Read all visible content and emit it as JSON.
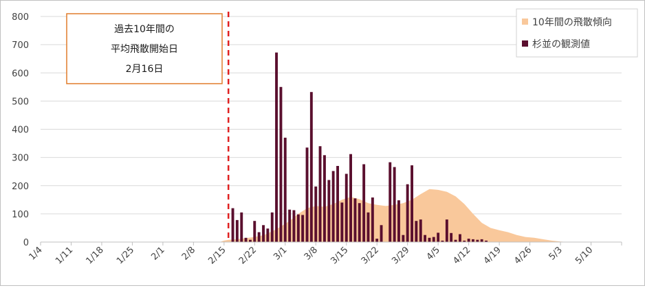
{
  "chart_data": {
    "type": "bar",
    "ylim": [
      0,
      800
    ],
    "yticks": [
      0,
      100,
      200,
      300,
      400,
      500,
      600,
      700,
      800
    ],
    "xlim": [
      "1/4",
      "5/17"
    ],
    "xticks": [
      "1/4",
      "1/11",
      "1/18",
      "1/25",
      "2/1",
      "2/8",
      "2/15",
      "2/22",
      "3/1",
      "3/8",
      "3/15",
      "3/22",
      "3/29",
      "4/5",
      "4/12",
      "4/19",
      "4/26",
      "5/3",
      "5/10"
    ],
    "grid": true,
    "legend_position": "top-right",
    "annotation": {
      "lines": [
        "過去10年間の",
        "平均飛散開始日",
        "2月16日"
      ],
      "marker_date": "2/16"
    },
    "series": [
      {
        "name": "10年間の飛散傾向",
        "kind": "area",
        "color": "#f9c89b",
        "points": [
          [
            "2/14",
            0
          ],
          [
            "2/15",
            5
          ],
          [
            "2/16",
            8
          ],
          [
            "2/18",
            10
          ],
          [
            "2/20",
            14
          ],
          [
            "2/22",
            18
          ],
          [
            "2/24",
            24
          ],
          [
            "2/26",
            38
          ],
          [
            "2/28",
            55
          ],
          [
            "3/2",
            75
          ],
          [
            "3/4",
            100
          ],
          [
            "3/6",
            120
          ],
          [
            "3/8",
            128
          ],
          [
            "3/10",
            125
          ],
          [
            "3/12",
            135
          ],
          [
            "3/14",
            150
          ],
          [
            "3/16",
            160
          ],
          [
            "3/18",
            152
          ],
          [
            "3/20",
            138
          ],
          [
            "3/22",
            132
          ],
          [
            "3/24",
            128
          ],
          [
            "3/26",
            132
          ],
          [
            "3/28",
            138
          ],
          [
            "3/30",
            150
          ],
          [
            "4/1",
            170
          ],
          [
            "4/3",
            188
          ],
          [
            "4/5",
            185
          ],
          [
            "4/7",
            178
          ],
          [
            "4/9",
            162
          ],
          [
            "4/11",
            135
          ],
          [
            "4/13",
            100
          ],
          [
            "4/15",
            68
          ],
          [
            "4/17",
            50
          ],
          [
            "4/19",
            42
          ],
          [
            "4/21",
            35
          ],
          [
            "4/23",
            25
          ],
          [
            "4/25",
            18
          ],
          [
            "4/27",
            15
          ],
          [
            "4/29",
            10
          ],
          [
            "5/1",
            5
          ],
          [
            "5/3",
            2
          ],
          [
            "5/5",
            0
          ]
        ]
      },
      {
        "name": "杉並の観測値",
        "kind": "bar",
        "color": "#5a0f2e",
        "points": [
          [
            "2/16",
            0
          ],
          [
            "2/17",
            120
          ],
          [
            "2/18",
            78
          ],
          [
            "2/19",
            105
          ],
          [
            "2/20",
            15
          ],
          [
            "2/21",
            8
          ],
          [
            "2/22",
            75
          ],
          [
            "2/23",
            35
          ],
          [
            "2/24",
            60
          ],
          [
            "2/25",
            48
          ],
          [
            "2/26",
            105
          ],
          [
            "2/27",
            672
          ],
          [
            "2/28",
            550
          ],
          [
            "3/1",
            370
          ],
          [
            "3/2",
            115
          ],
          [
            "3/3",
            113
          ],
          [
            "3/4",
            98
          ],
          [
            "3/5",
            96
          ],
          [
            "3/6",
            335
          ],
          [
            "3/7",
            532
          ],
          [
            "3/8",
            197
          ],
          [
            "3/9",
            340
          ],
          [
            "3/10",
            308
          ],
          [
            "3/11",
            220
          ],
          [
            "3/12",
            252
          ],
          [
            "3/13",
            270
          ],
          [
            "3/14",
            140
          ],
          [
            "3/15",
            242
          ],
          [
            "3/16",
            312
          ],
          [
            "3/17",
            155
          ],
          [
            "3/18",
            138
          ],
          [
            "3/19",
            276
          ],
          [
            "3/20",
            105
          ],
          [
            "3/21",
            158
          ],
          [
            "3/22",
            12
          ],
          [
            "3/23",
            60
          ],
          [
            "3/24",
            0
          ],
          [
            "3/25",
            283
          ],
          [
            "3/26",
            266
          ],
          [
            "3/27",
            148
          ],
          [
            "3/28",
            25
          ],
          [
            "3/29",
            205
          ],
          [
            "3/30",
            272
          ],
          [
            "3/31",
            75
          ],
          [
            "4/1",
            80
          ],
          [
            "4/2",
            25
          ],
          [
            "4/3",
            15
          ],
          [
            "4/4",
            18
          ],
          [
            "4/5",
            33
          ],
          [
            "4/6",
            5
          ],
          [
            "4/7",
            80
          ],
          [
            "4/8",
            32
          ],
          [
            "4/9",
            8
          ],
          [
            "4/10",
            28
          ],
          [
            "4/11",
            5
          ],
          [
            "4/12",
            12
          ],
          [
            "4/13",
            10
          ],
          [
            "4/14",
            8
          ],
          [
            "4/15",
            10
          ],
          [
            "4/16",
            5
          ]
        ]
      }
    ]
  }
}
